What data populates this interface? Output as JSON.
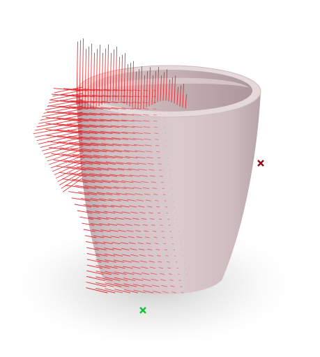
{
  "viewport": {
    "background": "#ffffff",
    "object_name": "cup",
    "cup_body_color": "#d8c7c9",
    "cup_shadow_color": "#b8a6aa",
    "cup_inner_color": "#c9b6b8",
    "rim_color": "#e9dcdd",
    "vector_color": "#e0161c",
    "markers": [
      {
        "name": "marker-dark-red",
        "color": "#8e0f16",
        "glyph": "x-cross-icon"
      },
      {
        "name": "marker-green",
        "color": "#13c33a",
        "glyph": "x-cross-icon"
      }
    ]
  }
}
